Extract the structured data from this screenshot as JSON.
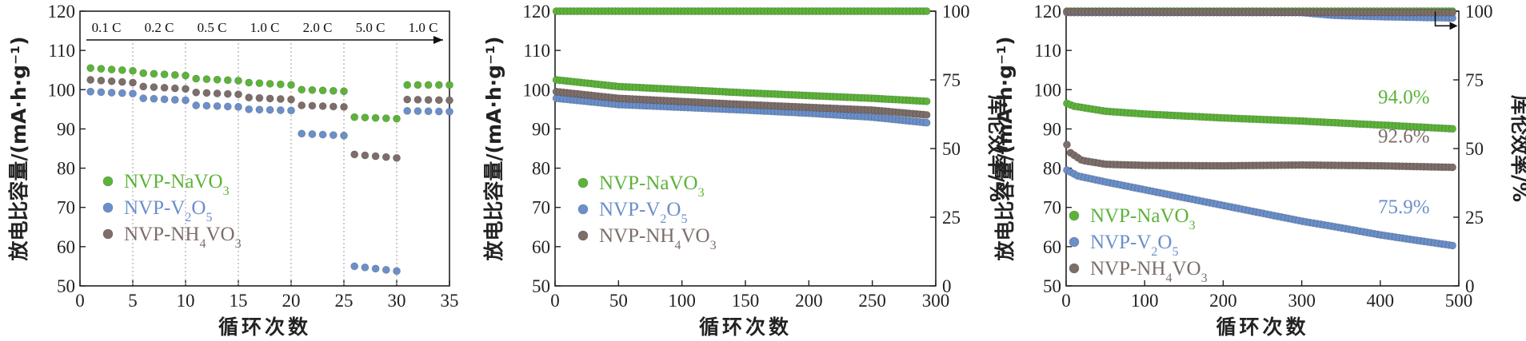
{
  "colors": {
    "green": "#5db33a",
    "blue": "#6b8fc9",
    "gray": "#7d6e6a",
    "axis": "#222222"
  },
  "chart_data": [
    {
      "type": "scatter",
      "xlabel": "循环次数",
      "ylabel": "放电比容量/(mA·h·g⁻¹)",
      "xlim": [
        0,
        35
      ],
      "ylim": [
        50,
        120
      ],
      "xticks": [
        "0",
        "5",
        "10",
        "15",
        "20",
        "25",
        "30",
        "35"
      ],
      "yticks": [
        "50",
        "60",
        "70",
        "80",
        "90",
        "100",
        "110",
        "120"
      ],
      "rate_labels": [
        "0.1 C",
        "0.2 C",
        "0.5 C",
        "1.0 C",
        "2.0 C",
        "5.0 C",
        "1.0 C"
      ],
      "legend": [
        {
          "label": "NVP-NaVO",
          "sub": "3",
          "color": "green"
        },
        {
          "label": "NVP-V",
          "sub": "2",
          "label2": "O",
          "sub2": "5",
          "color": "blue"
        },
        {
          "label": "NVP-NH",
          "sub": "4",
          "label2": "VO",
          "sub2": "3",
          "color": "gray"
        }
      ],
      "series": [
        {
          "name": "NVP-NaVO3",
          "color": "green",
          "segments": [
            [
              1,
              5,
              105.5,
              104.8
            ],
            [
              6,
              10,
              104.2,
              103.6
            ],
            [
              11,
              15,
              102.8,
              102.3
            ],
            [
              16,
              20,
              101.8,
              101.2
            ],
            [
              21,
              25,
              100.0,
              99.6
            ],
            [
              26,
              30,
              93.0,
              92.6
            ],
            [
              31,
              35,
              101.2,
              101.2
            ]
          ]
        },
        {
          "name": "NVP-V2O5",
          "color": "blue",
          "segments": [
            [
              1,
              5,
              99.5,
              99.0
            ],
            [
              6,
              10,
              97.8,
              97.3
            ],
            [
              11,
              15,
              96.0,
              95.6
            ],
            [
              16,
              20,
              95.0,
              94.7
            ],
            [
              21,
              25,
              88.8,
              88.3
            ],
            [
              26,
              30,
              55.0,
              53.8
            ],
            [
              31,
              35,
              94.6,
              94.4
            ]
          ]
        },
        {
          "name": "NVP-NH4VO3",
          "color": "gray",
          "segments": [
            [
              1,
              5,
              102.5,
              101.8
            ],
            [
              6,
              10,
              100.8,
              100.2
            ],
            [
              11,
              15,
              99.3,
              98.8
            ],
            [
              16,
              20,
              98.0,
              97.5
            ],
            [
              21,
              25,
              96.0,
              95.6
            ],
            [
              26,
              30,
              83.5,
              82.6
            ],
            [
              31,
              35,
              97.5,
              97.3
            ]
          ]
        }
      ]
    },
    {
      "type": "scatter",
      "xlabel": "循环次数",
      "ylabel": "放电比容量/(mA·h·g⁻¹)",
      "y2label": "库伦效率/%",
      "xlim": [
        0,
        300
      ],
      "ylim": [
        50,
        120
      ],
      "y2lim": [
        0,
        100
      ],
      "xticks": [
        "0",
        "50",
        "100",
        "150",
        "200",
        "250",
        "300"
      ],
      "yticks": [
        "50",
        "60",
        "70",
        "80",
        "90",
        "100",
        "110",
        "120"
      ],
      "y2ticks": [
        "0",
        "25",
        "50",
        "75",
        "100"
      ],
      "legend": [
        {
          "label": "NVP-NaVO",
          "sub": "3",
          "color": "green"
        },
        {
          "label": "NVP-V",
          "sub": "2",
          "label2": "O",
          "sub2": "5",
          "color": "blue"
        },
        {
          "label": "NVP-NH",
          "sub": "4",
          "label2": "VO",
          "sub2": "3",
          "color": "gray"
        }
      ],
      "series": [
        {
          "name": "NVP-NaVO3",
          "color": "green",
          "axis": "y",
          "points": [
            [
              1,
              102.5
            ],
            [
              50,
              100.8
            ],
            [
              100,
              100.0
            ],
            [
              150,
              99.2
            ],
            [
              200,
              98.5
            ],
            [
              250,
              97.8
            ],
            [
              295,
              97.0
            ]
          ]
        },
        {
          "name": "NVP-V2O5",
          "color": "blue",
          "axis": "y",
          "points": [
            [
              1,
              97.8
            ],
            [
              50,
              96.2
            ],
            [
              100,
              95.5
            ],
            [
              150,
              94.8
            ],
            [
              200,
              94.0
            ],
            [
              250,
              93.0
            ],
            [
              295,
              91.5
            ]
          ]
        },
        {
          "name": "NVP-NH4VO3",
          "color": "gray",
          "axis": "y",
          "points": [
            [
              1,
              99.5
            ],
            [
              50,
              97.8
            ],
            [
              100,
              97.0
            ],
            [
              150,
              96.2
            ],
            [
              200,
              95.5
            ],
            [
              250,
              94.8
            ],
            [
              295,
              93.5
            ]
          ]
        },
        {
          "name": "NVP-NaVO3 CE",
          "color": "green",
          "axis": "y2",
          "points": [
            [
              1,
              100
            ],
            [
              295,
              100
            ]
          ]
        }
      ]
    },
    {
      "type": "scatter",
      "xlabel": "循环次数",
      "ylabel": "放电比容量/(mA·h·g⁻¹)",
      "y2label": "库伦效率/%",
      "xlim": [
        0,
        500
      ],
      "ylim": [
        50,
        120
      ],
      "y2lim": [
        0,
        100
      ],
      "xticks": [
        "0",
        "100",
        "200",
        "300",
        "400",
        "500"
      ],
      "yticks": [
        "50",
        "60",
        "70",
        "80",
        "90",
        "100",
        "110",
        "120"
      ],
      "y2ticks": [
        "0",
        "25",
        "50",
        "75",
        "100"
      ],
      "annotations": [
        {
          "text": "94.0%",
          "color": "green",
          "x": 430,
          "y": 96.5
        },
        {
          "text": "92.6%",
          "color": "gray",
          "x": 430,
          "y": 86.5
        },
        {
          "text": "75.9%",
          "color": "blue",
          "x": 430,
          "y": 68.5
        }
      ],
      "legend": [
        {
          "label": "NVP-NaVO",
          "sub": "3",
          "color": "green"
        },
        {
          "label": "NVP-V",
          "sub": "2",
          "label2": "O",
          "sub2": "5",
          "color": "blue"
        },
        {
          "label": "NVP-NH",
          "sub": "4",
          "label2": "VO",
          "sub2": "3",
          "color": "gray"
        }
      ],
      "series": [
        {
          "name": "NVP-NaVO3",
          "color": "green",
          "axis": "y",
          "points": [
            [
              1,
              96.5
            ],
            [
              10,
              95.8
            ],
            [
              50,
              94.5
            ],
            [
              100,
              93.8
            ],
            [
              200,
              92.8
            ],
            [
              300,
              92.0
            ],
            [
              400,
              91.0
            ],
            [
              495,
              90.0
            ]
          ]
        },
        {
          "name": "NVP-V2O5",
          "color": "blue",
          "axis": "y",
          "points": [
            [
              1,
              79.5
            ],
            [
              15,
              78.0
            ],
            [
              50,
              76.5
            ],
            [
              100,
              74.5
            ],
            [
              150,
              72.5
            ],
            [
              200,
              70.5
            ],
            [
              250,
              68.5
            ],
            [
              300,
              66.5
            ],
            [
              350,
              64.8
            ],
            [
              400,
              63.0
            ],
            [
              450,
              61.5
            ],
            [
              495,
              60.2
            ]
          ]
        },
        {
          "name": "NVP-NH4VO3",
          "color": "gray",
          "axis": "y",
          "points": [
            [
              1,
              86.0
            ],
            [
              5,
              84.0
            ],
            [
              20,
              82.0
            ],
            [
              50,
              81.0
            ],
            [
              100,
              80.7
            ],
            [
              200,
              80.6
            ],
            [
              300,
              80.8
            ],
            [
              400,
              80.6
            ],
            [
              495,
              80.2
            ]
          ]
        },
        {
          "name": "NVP-NaVO3 CE",
          "color": "green",
          "axis": "y2",
          "points": [
            [
              1,
              100
            ],
            [
              495,
              100
            ]
          ]
        },
        {
          "name": "NVP-V2O5 CE",
          "color": "blue",
          "axis": "y2",
          "points": [
            [
              1,
              99.5
            ],
            [
              300,
              99.5
            ],
            [
              340,
              98.5
            ],
            [
              400,
              98.0
            ],
            [
              495,
              97.5
            ]
          ]
        },
        {
          "name": "NVP-NH4VO3 CE",
          "color": "gray",
          "axis": "y2",
          "points": [
            [
              1,
              99.8
            ],
            [
              495,
              99.5
            ]
          ]
        }
      ]
    }
  ]
}
